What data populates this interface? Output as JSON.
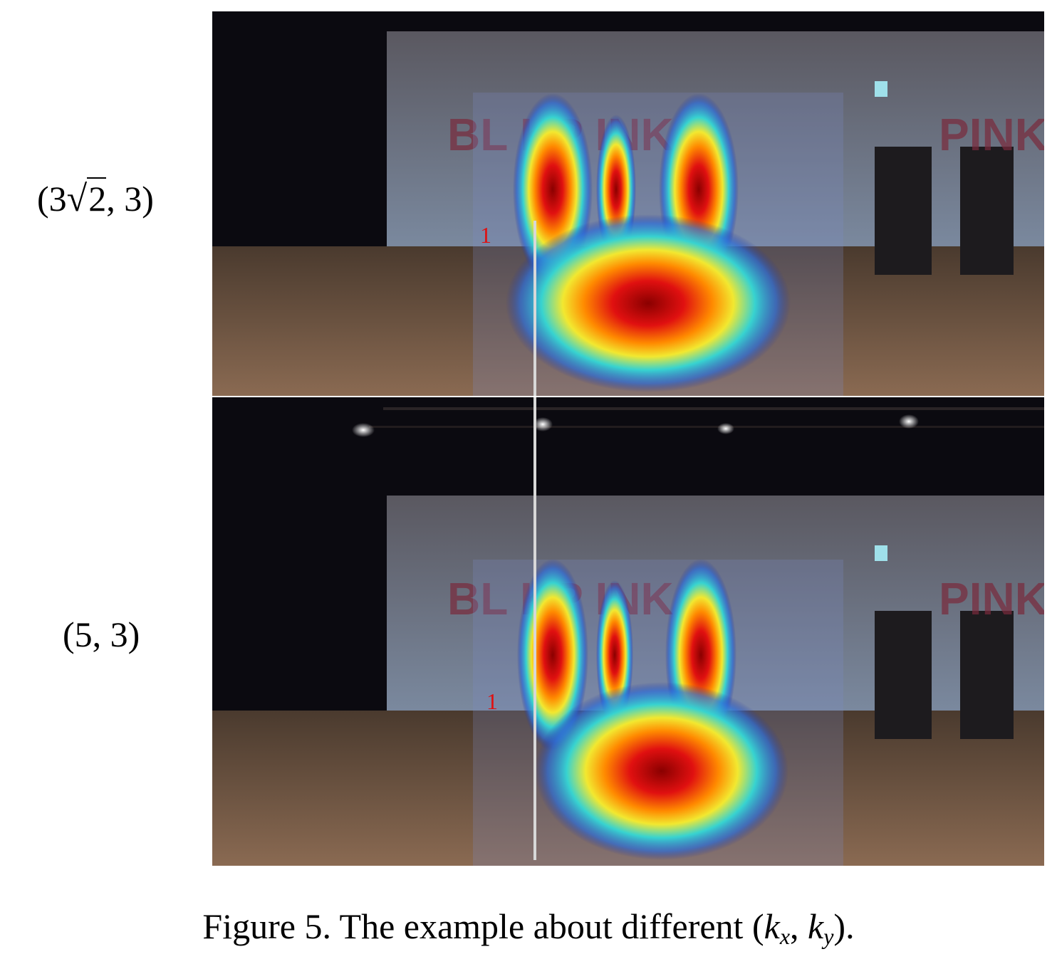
{
  "rows": [
    {
      "label_prefix": "(3",
      "label_sqrt_arg": "2",
      "label_suffix": ", 3)"
    },
    {
      "label": "(5, 3)"
    }
  ],
  "banner_text": "BL    KP   INK",
  "banner_text_right": "PINK",
  "marker_label": "1",
  "caption": {
    "prefix": "Figure 5. The example about different ",
    "open": "(",
    "k": "k",
    "sub_x": "x",
    "comma": ", ",
    "sub_y": "y",
    "close": ")."
  }
}
